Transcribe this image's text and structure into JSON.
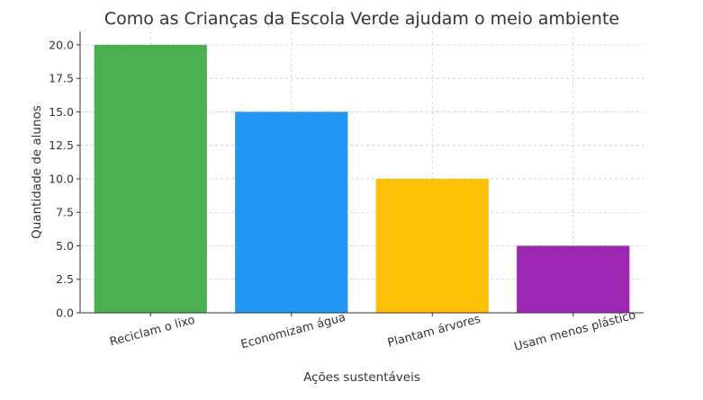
{
  "chart_data": {
    "type": "bar",
    "title": "Como as Crianças da Escola Verde ajudam o meio ambiente",
    "xlabel": "Ações sustentáveis",
    "ylabel": "Quantidade de alunos",
    "categories": [
      "Reciclam o lixo",
      "Economizam água",
      "Plantam árvores",
      "Usam menos plástico"
    ],
    "values": [
      20,
      15,
      10,
      5
    ],
    "colors": [
      "#4caf50",
      "#2196f3",
      "#ffc107",
      "#9c27b0"
    ],
    "ylim": [
      0,
      21
    ],
    "yticks": [
      0,
      2.5,
      5,
      7.5,
      10,
      12.5,
      15,
      17.5,
      20
    ],
    "ytick_labels": [
      "0.0",
      "2.5",
      "5.0",
      "7.5",
      "10.0",
      "12.5",
      "15.0",
      "17.5",
      "20.0"
    ],
    "grid": true,
    "legend": "none"
  }
}
